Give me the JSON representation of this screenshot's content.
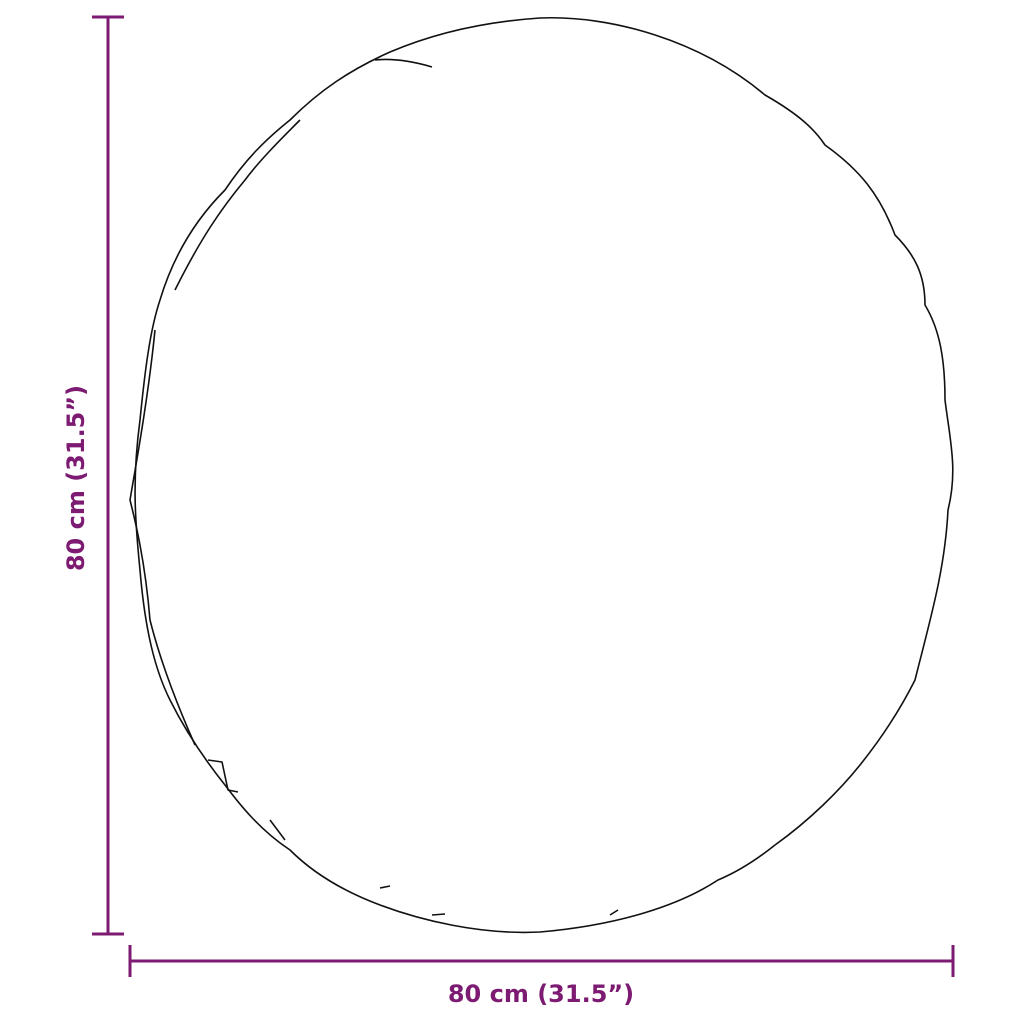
{
  "diagram": {
    "width_label": "80 cm (31.5”)",
    "height_label": "80 cm (31.5”)",
    "colors": {
      "dimension": "#7d1a72",
      "outline": "#111111"
    },
    "object": "round-mirror-outline"
  }
}
